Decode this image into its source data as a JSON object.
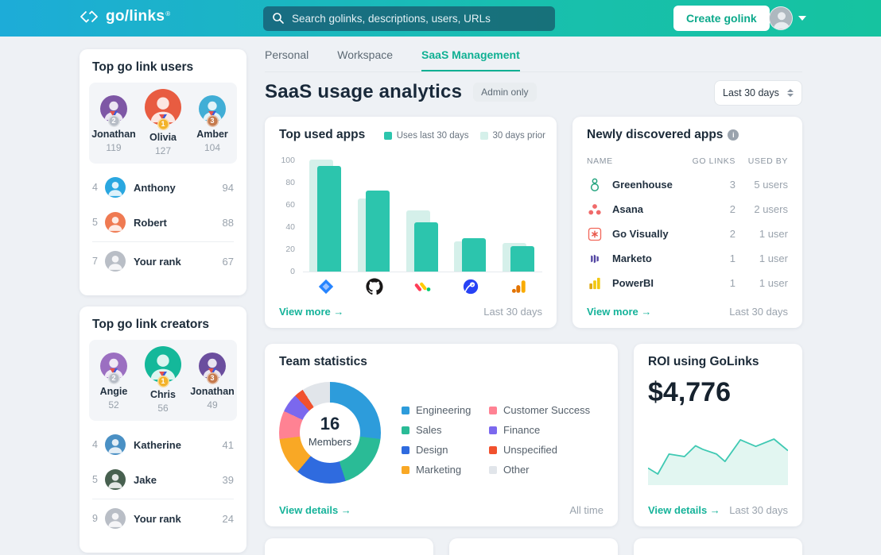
{
  "colors": {
    "accent_teal": "#16b39a",
    "header_gradient_left": "#1dacd8",
    "header_gradient_right": "#16c3a0",
    "bar_dark": "#2cc5ad",
    "bar_light": "#d5f0ea",
    "page_bg": "#eef1f5"
  },
  "header": {
    "logo_text": "go/links",
    "logo_reg": "®",
    "search_placeholder": "Search golinks, descriptions, users, URLs",
    "create_button": "Create golink"
  },
  "sidebar": {
    "users_card": {
      "title": "Top go link users",
      "podium": [
        {
          "rank": 2,
          "name": "Jonathan",
          "value": "119",
          "avatar_color": "#7e57a5"
        },
        {
          "rank": 1,
          "name": "Olivia",
          "value": "127",
          "avatar_color": "#e85c41"
        },
        {
          "rank": 3,
          "name": "Amber",
          "value": "104",
          "avatar_color": "#41aed6"
        }
      ],
      "rows": [
        {
          "rank": "4",
          "name": "Anthony",
          "value": "94",
          "avatar_color": "#2aa7e0"
        },
        {
          "rank": "5",
          "name": "Robert",
          "value": "88",
          "avatar_color": "#ef7a52"
        }
      ],
      "self_row": {
        "rank": "7",
        "name": "Your rank",
        "value": "67",
        "avatar_color": "#b9bec6"
      }
    },
    "creators_card": {
      "title": "Top go link creators",
      "podium": [
        {
          "rank": 2,
          "name": "Angie",
          "value": "52",
          "avatar_color": "#9b6fc1"
        },
        {
          "rank": 1,
          "name": "Chris",
          "value": "56",
          "avatar_color": "#14b89a"
        },
        {
          "rank": 3,
          "name": "Jonathan",
          "value": "49",
          "avatar_color": "#6b4e9e"
        }
      ],
      "rows": [
        {
          "rank": "4",
          "name": "Katherine",
          "value": "41",
          "avatar_color": "#4a90c4"
        },
        {
          "rank": "5",
          "name": "Jake",
          "value": "39",
          "avatar_color": "#47604f"
        }
      ],
      "self_row": {
        "rank": "9",
        "name": "Your rank",
        "value": "24",
        "avatar_color": "#b9bec6"
      }
    },
    "medal_colors": {
      "1": "#f3b32a",
      "2": "#b7bdc6",
      "3": "#c57a4d"
    }
  },
  "main": {
    "tabs": [
      {
        "label": "Personal",
        "active": false
      },
      {
        "label": "Workspace",
        "active": false
      },
      {
        "label": "SaaS Management",
        "active": true
      }
    ],
    "title": "SaaS usage analytics",
    "badge": "Admin only",
    "range_value": "Last 30 days",
    "top_used_apps": {
      "title": "Top used apps",
      "footer_link": "View more →",
      "footer_note": "Last 30 days"
    },
    "newly_discovered": {
      "title": "Newly discovered apps",
      "info_icon": "i",
      "columns": [
        "NAME",
        "GO LINKS",
        "USED BY"
      ],
      "rows": [
        {
          "icon": "greenhouse",
          "name": "Greenhouse",
          "golinks": "3",
          "used_by": "5 users"
        },
        {
          "icon": "asana",
          "name": "Asana",
          "golinks": "2",
          "used_by": "2 users"
        },
        {
          "icon": "govisually",
          "name": "Go Visually",
          "golinks": "2",
          "used_by": "1 user"
        },
        {
          "icon": "marketo",
          "name": "Marketo",
          "golinks": "1",
          "used_by": "1 user"
        },
        {
          "icon": "powerbi",
          "name": "PowerBI",
          "golinks": "1",
          "used_by": "1 user"
        }
      ],
      "footer_link": "View more →",
      "footer_note": "Last 30 days"
    },
    "team_statistics": {
      "title": "Team statistics",
      "center_value": "16",
      "center_label": "Members",
      "footer_link": "View details →",
      "footer_note": "All time"
    },
    "roi": {
      "title": "ROI using GoLinks",
      "value": "$4,776",
      "footer_link": "View details →",
      "footer_note": "Last 30 days"
    }
  },
  "chart_data": [
    {
      "type": "bar",
      "title": "Top used apps",
      "categories": [
        "Jira",
        "GitHub",
        "monday.com",
        "Rocket app",
        "Google Analytics"
      ],
      "icon_keys": [
        "jira",
        "github",
        "monday",
        "rocket",
        "googleanalytics"
      ],
      "series": [
        {
          "name": "Uses last 30 days",
          "color": "#2cc5ad",
          "values": [
            95,
            73,
            44,
            30,
            23
          ]
        },
        {
          "name": "30 days prior",
          "color": "#d5f0ea",
          "values": [
            101,
            66,
            55,
            27,
            26
          ]
        }
      ],
      "ylabel": "",
      "xlabel": "",
      "ylim": [
        0,
        100
      ],
      "yticks": [
        0,
        20,
        40,
        60,
        80,
        100
      ],
      "grid": false,
      "legend_position": "top-right"
    },
    {
      "type": "pie",
      "title": "Team statistics",
      "labels": [
        "Engineering",
        "Sales",
        "Design",
        "Marketing",
        "Customer Success",
        "Finance",
        "Unspecified",
        "Other"
      ],
      "values": [
        27,
        18,
        16,
        12,
        9,
        6,
        3,
        9
      ],
      "colors": [
        "#2d9cdb",
        "#2abb96",
        "#2f6bdf",
        "#f9a825",
        "#ff8293",
        "#7b68ee",
        "#f1512e",
        "#e1e5ea"
      ],
      "center_value": "16",
      "center_label": "Members",
      "donut": true,
      "legend_position": "right"
    },
    {
      "type": "area",
      "title": "ROI using GoLinks trend",
      "line_color": "#3fc9b3",
      "fill_color": "#e2f6f1",
      "points_pct": [
        [
          0,
          83
        ],
        [
          7,
          100
        ],
        [
          15,
          43
        ],
        [
          26,
          50
        ],
        [
          34,
          19
        ],
        [
          39,
          29
        ],
        [
          49,
          43
        ],
        [
          55,
          64
        ],
        [
          66,
          2
        ],
        [
          77,
          21
        ],
        [
          90,
          0
        ],
        [
          100,
          33
        ]
      ]
    }
  ]
}
